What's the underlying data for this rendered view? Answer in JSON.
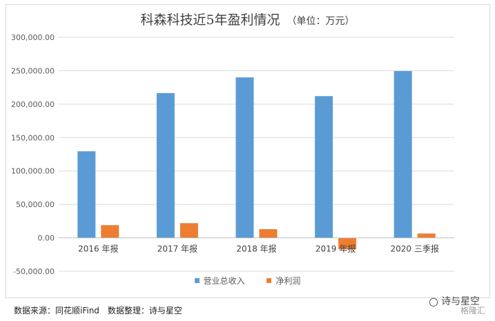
{
  "chart_data": {
    "type": "bar",
    "title": "科森科技近5年盈利情况",
    "unit_label": "（单位：万元）",
    "categories": [
      "2016 年报",
      "2017 年报",
      "2018 年报",
      "2019 年报",
      "2020 三季报"
    ],
    "series": [
      {
        "name": "营业总收入",
        "color": "#5b9bd5",
        "values": [
          129500,
          216500,
          240000,
          212000,
          249500
        ]
      },
      {
        "name": "净利润",
        "color": "#ed7d31",
        "values": [
          19000,
          22000,
          13000,
          -17000,
          6500
        ]
      }
    ],
    "ylim": [
      -50000,
      300000
    ],
    "yticks": [
      -50000,
      0,
      50000,
      100000,
      150000,
      200000,
      250000,
      300000
    ],
    "ytick_labels": [
      "-50,000.00",
      "0.00",
      "50,000.00",
      "100,000.00",
      "150,000.00",
      "200,000.00",
      "250,000.00",
      "300,000.00"
    ],
    "xlabel": "",
    "ylabel": "",
    "grid": true,
    "legend_position": "bottom"
  },
  "footer": {
    "source": "数据来源：同花顺iFind　数据整理：诗与星空"
  },
  "watermark": {
    "icon": "wechat-icon",
    "text": "诗与星空",
    "brand": "格隆汇"
  }
}
